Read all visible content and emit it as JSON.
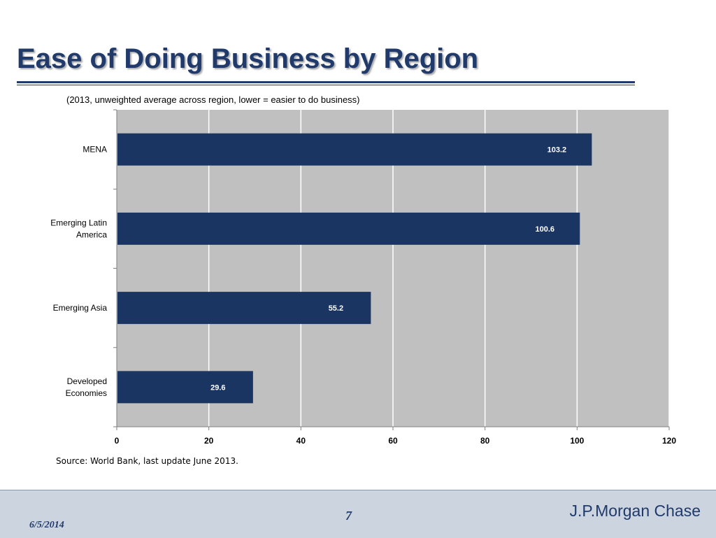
{
  "slide": {
    "title": "Ease of Doing Business by Region",
    "source": "Source: World Bank, last update June 2013."
  },
  "footer": {
    "date": "6/5/2014",
    "page": "7",
    "brand": "J.P.Morgan Chase"
  },
  "colors": {
    "bar": "#1a3561",
    "plot_bg": "#c0c0c0",
    "gridline": "#ffffff",
    "title": "#1f3a6b"
  },
  "chart_data": {
    "type": "bar",
    "orientation": "horizontal",
    "subtitle": "(2013, unweighted average across region, lower = easier to do business)",
    "categories": [
      [
        "MENA"
      ],
      [
        "Emerging Latin",
        "America"
      ],
      [
        "Emerging Asia"
      ],
      [
        "Developed",
        "Economies"
      ]
    ],
    "values": [
      103.2,
      100.6,
      55.2,
      29.6
    ],
    "data_labels": [
      "103.2",
      "100.6",
      "55.2",
      "29.6"
    ],
    "xlim": [
      0,
      120
    ],
    "xticks": [
      0,
      20,
      40,
      60,
      80,
      100,
      120
    ],
    "grid": true,
    "legend": "none"
  }
}
